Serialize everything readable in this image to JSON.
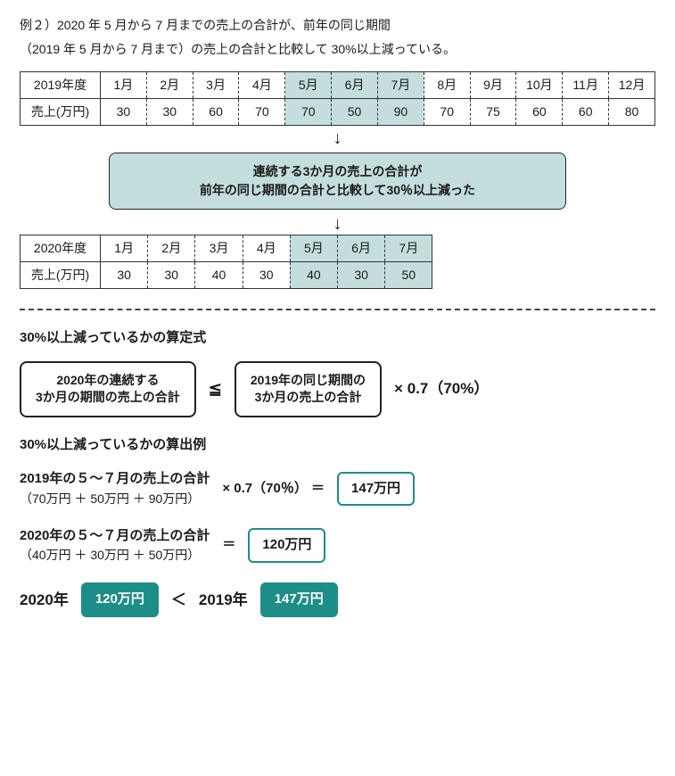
{
  "colors": {
    "highlight_bg": "#c3dedd",
    "callout_bg": "#c3dedd",
    "teal_bg": "#1d8d87",
    "teal_fg": "#ffffff",
    "teal_border": "#1d8d87",
    "outline_border": "#1d8d87",
    "outline_bg": "#ffffff",
    "outline_fg": "#1a1a1a"
  },
  "intro": {
    "line1": "例２）2020 年 5 月から 7 月までの売上の合計が、前年の同じ期間",
    "line2": "（2019 年 5 月から 7 月まで）の売上の合計と比較して 30%以上減っている。"
  },
  "table2019": {
    "rowlabel_header": "2019年度",
    "rowlabel_data": "売上(万円)",
    "months": [
      "1月",
      "2月",
      "3月",
      "4月",
      "5月",
      "6月",
      "7月",
      "8月",
      "9月",
      "10月",
      "11月",
      "12月"
    ],
    "values": [
      "30",
      "30",
      "60",
      "70",
      "70",
      "50",
      "90",
      "70",
      "75",
      "60",
      "60",
      "80"
    ],
    "highlight_indices": [
      4,
      5,
      6
    ]
  },
  "callout": {
    "line1": "連続する3か月の売上の合計が",
    "line2": "前年の同じ期間の合計と比較して30％以上減った"
  },
  "table2020": {
    "rowlabel_header": "2020年度",
    "rowlabel_data": "売上(万円)",
    "months": [
      "1月",
      "2月",
      "3月",
      "4月",
      "5月",
      "6月",
      "7月"
    ],
    "values": [
      "30",
      "30",
      "40",
      "30",
      "40",
      "30",
      "50"
    ],
    "highlight_indices": [
      4,
      5,
      6
    ]
  },
  "formula_section_title": "30%以上減っているかの算定式",
  "formula": {
    "left_line1": "2020年の連続する",
    "left_line2": "3か月の期間の売上の合計",
    "op": "≦",
    "right_line1": "2019年の同じ期間の",
    "right_line2": "3か月の売上の合計",
    "mult": "× 0.7（70%）"
  },
  "example_section_title": "30%以上減っているかの算出例",
  "calc2019": {
    "title": "2019年の５～７月の売上の合計",
    "sub": "（70万円 ＋ 50万円 ＋ 90万円）",
    "mult": "× 0.7（70％） ＝",
    "result": "147万円"
  },
  "calc2020": {
    "title": "2020年の５～７月の売上の合計",
    "sub": "（40万円 ＋ 30万円 ＋ 50万円）",
    "eq": "＝",
    "result": "120万円"
  },
  "final": {
    "label2020": "2020年",
    "value2020": "120万円",
    "op": "＜",
    "label2019": "2019年",
    "value2019": "147万円"
  }
}
